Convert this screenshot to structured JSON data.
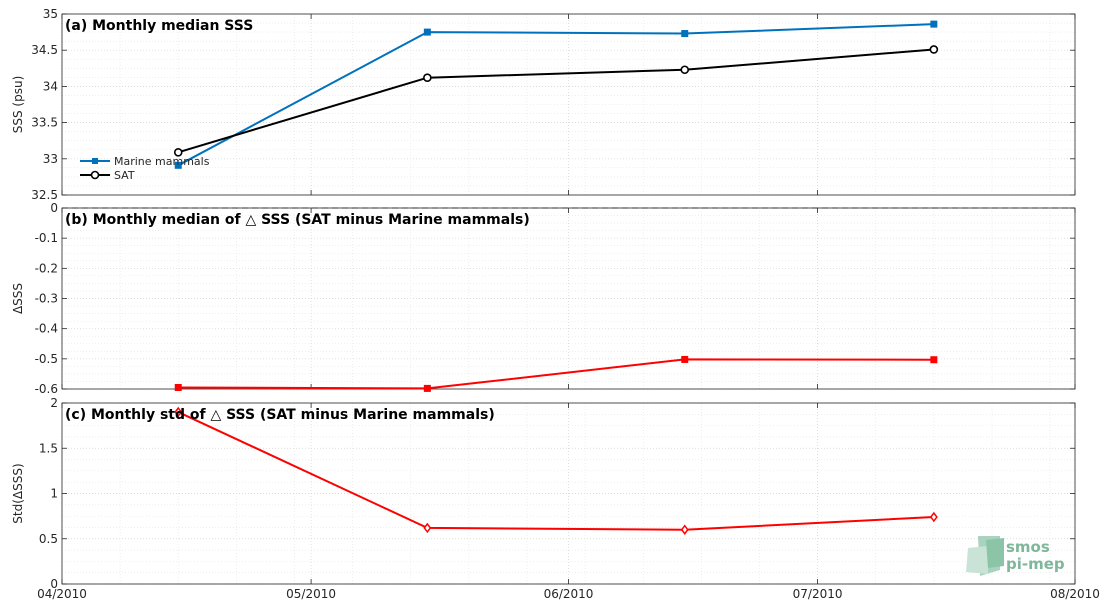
{
  "chart_data": [
    {
      "type": "line",
      "panel": "a",
      "title": "(a) Monthly median SSS",
      "ylabel": "SSS (psu)",
      "ylim": [
        32.5,
        35
      ],
      "yticks": [
        "32.5",
        "33",
        "33.5",
        "34",
        "34.5",
        "35"
      ],
      "x": [
        "2010-04-15",
        "2010-05-15",
        "2010-06-15",
        "2010-07-15"
      ],
      "series": [
        {
          "name": "Marine mammals",
          "color": "#0072bd",
          "marker": "square",
          "values": [
            32.91,
            34.75,
            34.73,
            34.86
          ]
        },
        {
          "name": "SAT",
          "color": "#000000",
          "marker": "circle",
          "values": [
            33.09,
            34.12,
            34.23,
            34.51
          ]
        }
      ],
      "legend": "bottom-left",
      "grid": true
    },
    {
      "type": "line",
      "panel": "b",
      "title": "(b) Monthly median of △ SSS (SAT minus Marine mammals)",
      "ylabel": "ΔSSS",
      "ylim": [
        -0.6,
        0
      ],
      "yticks": [
        "-0.6",
        "-0.5",
        "-0.4",
        "-0.3",
        "-0.2",
        "-0.1",
        "0"
      ],
      "x": [
        "2010-04-15",
        "2010-05-15",
        "2010-06-15",
        "2010-07-15"
      ],
      "series": [
        {
          "color": "#ff0000",
          "marker": "square",
          "values": [
            -0.595,
            -0.598,
            -0.502,
            -0.503
          ]
        }
      ],
      "reference_line": {
        "y": 0,
        "style": "dashed"
      },
      "grid": true
    },
    {
      "type": "line",
      "panel": "c",
      "title": "(c) Monthly std of △ SSS (SAT minus Marine mammals)",
      "ylabel": "Std(ΔSSS)",
      "ylim": [
        0,
        2
      ],
      "yticks": [
        "0",
        "0.5",
        "1",
        "1.5",
        "2"
      ],
      "x": [
        "2010-04-15",
        "2010-05-15",
        "2010-06-15",
        "2010-07-15"
      ],
      "series": [
        {
          "color": "#ff0000",
          "marker": "diamond",
          "values": [
            1.9,
            0.62,
            0.6,
            0.74
          ]
        }
      ],
      "grid": true
    }
  ],
  "x_axis": {
    "range": [
      "2010-04-01",
      "2010-08-01"
    ],
    "tick_dates": [
      "2010-04-01",
      "2010-05-01",
      "2010-06-01",
      "2010-07-01",
      "2010-08-01"
    ],
    "tick_labels": [
      "04/2010",
      "05/2010",
      "06/2010",
      "07/2010",
      "08/2010"
    ]
  },
  "logo": {
    "line1": "smos",
    "line2": "pi-mep"
  }
}
